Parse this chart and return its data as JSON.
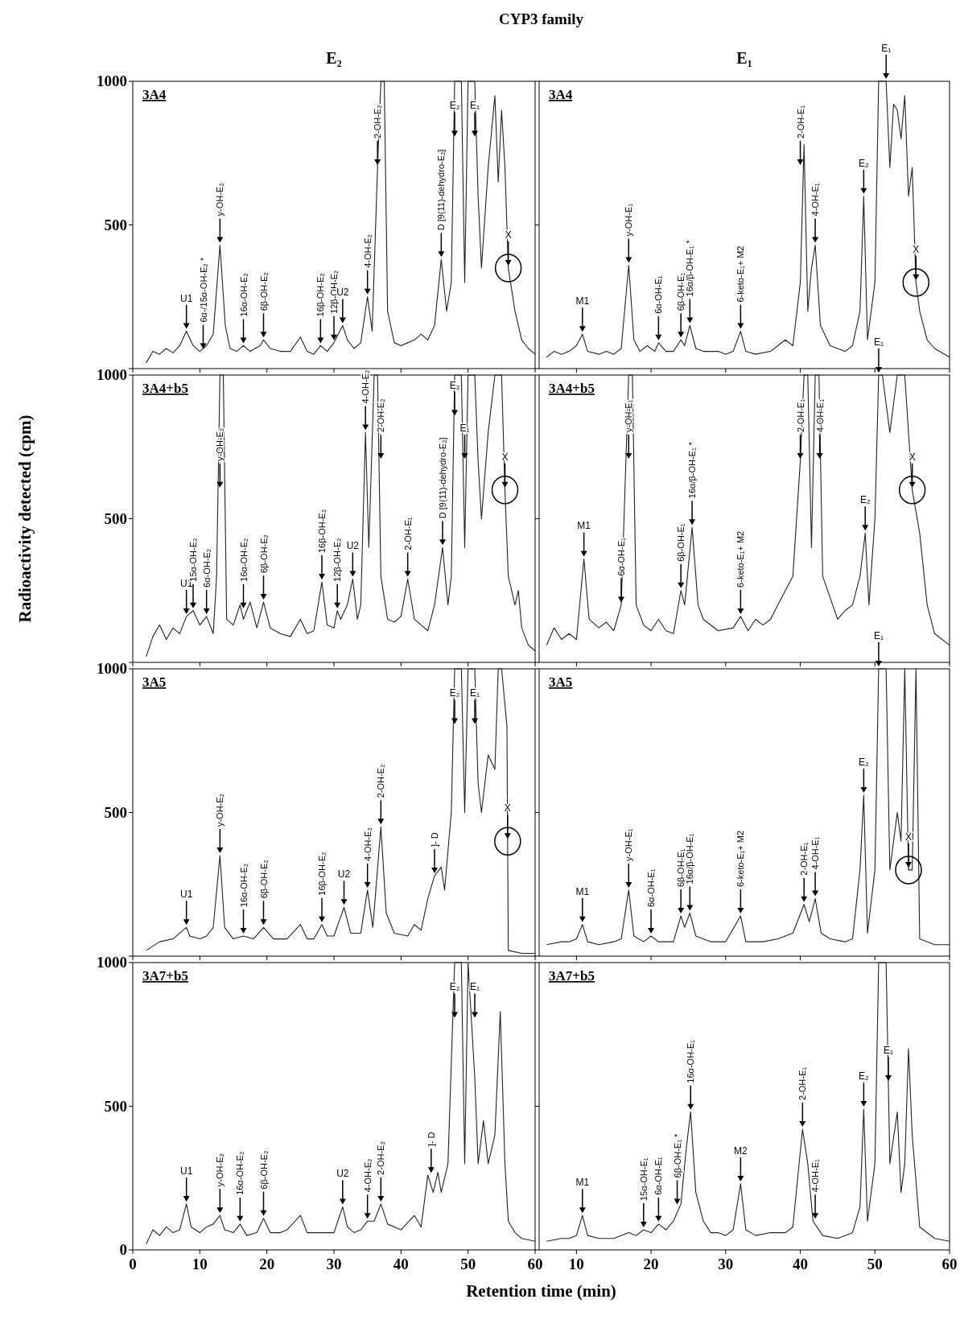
{
  "chart_data": [
    {
      "type": "line",
      "title": "3A4",
      "subtitle": "E₂",
      "xlim": [
        0,
        60
      ],
      "ylim": [
        0,
        1000
      ],
      "xticks": [
        0,
        10,
        20,
        30,
        40,
        50,
        60
      ],
      "yticks": [
        {
          "value": 0,
          "label": null
        },
        500,
        1000
      ],
      "tick_labels": "y",
      "x": [
        2,
        3,
        4,
        5,
        6,
        7,
        8,
        9,
        10,
        11,
        12,
        13,
        13.8,
        14.5,
        15.5,
        16.5,
        17.5,
        19,
        19.5,
        20.5,
        22,
        23.5,
        25,
        26,
        27,
        28,
        29,
        30,
        31.3,
        32,
        33,
        34,
        35,
        35.7,
        36.5,
        37,
        37.5,
        38,
        39,
        40,
        41,
        42,
        43,
        44,
        45,
        46,
        46.8,
        47.5,
        48,
        49,
        49.5,
        50,
        51,
        51.5,
        52,
        53,
        54,
        54.5,
        55,
        55.5,
        56,
        57,
        58,
        59,
        60
      ],
      "series": [
        {
          "color": "#222222",
          "values": [
            20,
            60,
            50,
            70,
            55,
            80,
            130,
            80,
            60,
            80,
            120,
            430,
            150,
            70,
            60,
            80,
            60,
            80,
            100,
            70,
            60,
            60,
            110,
            60,
            50,
            80,
            60,
            90,
            150,
            100,
            70,
            90,
            250,
            130,
            700,
            1000,
            1000,
            200,
            90,
            80,
            90,
            100,
            120,
            100,
            150,
            380,
            200,
            300,
            1000,
            1000,
            300,
            1000,
            1000,
            600,
            350,
            700,
            950,
            650,
            900,
            700,
            350,
            200,
            100,
            70,
            50
          ]
        }
      ],
      "annotations": [
        "CYP3 family",
        {
          "text": "U1",
          "x": 8,
          "y": 130
        },
        {
          "text": "6α-/15α-OH-E₂ *",
          "x": 10.5,
          "y": 60
        },
        {
          "text": "y-OH-E₂",
          "x": 13,
          "y": 430
        },
        {
          "text": "16α-OH-E₂",
          "x": 16.5,
          "y": 80
        },
        {
          "text": "6β-OH-E₂",
          "x": 19.5,
          "y": 100
        },
        {
          "text": "16β-OH-E₂",
          "x": 28,
          "y": 80
        },
        {
          "text": "12β-OH-E₂",
          "x": 30,
          "y": 90
        },
        {
          "text": "U2",
          "x": 31.3,
          "y": 150
        },
        {
          "text": "4-OH-E₂",
          "x": 35,
          "y": 250
        },
        {
          "text": "2-OH-E₂",
          "x": 36.5,
          "y": 700
        },
        {
          "text": "D [9(11)-dehydro-E₂]",
          "x": 46,
          "y": 380
        },
        {
          "text": "E₂",
          "x": 48,
          "y": 800
        },
        {
          "text": "E₁",
          "x": 51,
          "y": 800
        },
        {
          "text": "X",
          "x": 56,
          "y": 350
        }
      ]
    },
    {
      "type": "line",
      "title": "3A4",
      "subtitle": "E₁",
      "xlim": [
        5,
        60
      ],
      "ylim": [
        0,
        1000
      ],
      "xticks": [
        10,
        20,
        30,
        40,
        50,
        60
      ],
      "yticks": [
        {
          "value": 0,
          "label": null
        },
        {
          "value": 500,
          "label": null
        },
        {
          "value": 1000,
          "label": null
        }
      ],
      "tick_labels": false,
      "x": [
        6,
        7,
        8,
        9,
        10,
        10.8,
        11.5,
        13,
        14,
        15,
        16,
        17,
        17.7,
        18.5,
        19.5,
        20.5,
        21,
        22,
        23,
        24,
        24.5,
        25.2,
        26,
        27,
        29,
        30,
        31,
        32,
        32.7,
        34,
        36,
        37,
        38,
        39,
        40,
        40.5,
        41,
        41.5,
        42,
        42.7,
        44,
        46,
        47,
        48,
        48.5,
        49,
        50,
        50.5,
        51.5,
        52,
        52.5,
        53,
        53.5,
        54,
        54.5,
        55,
        55.5,
        56,
        57,
        58,
        60
      ],
      "series": [
        {
          "color": "#222222",
          "values": [
            40,
            60,
            50,
            60,
            80,
            120,
            60,
            50,
            60,
            50,
            70,
            360,
            100,
            60,
            80,
            60,
            90,
            60,
            60,
            100,
            80,
            150,
            70,
            60,
            60,
            50,
            60,
            130,
            60,
            50,
            60,
            80,
            100,
            80,
            300,
            780,
            200,
            350,
            430,
            150,
            80,
            60,
            80,
            200,
            600,
            100,
            300,
            1000,
            1000,
            700,
            920,
            900,
            800,
            950,
            600,
            700,
            300,
            200,
            100,
            70,
            40
          ]
        }
      ],
      "annotations": [
        {
          "text": "M1",
          "x": 10.8,
          "y": 120
        },
        {
          "text": "y-OH-E₁",
          "x": 17,
          "y": 360
        },
        {
          "text": "6α-OH-E₁",
          "x": 21,
          "y": 90
        },
        {
          "text": "6β-OH-E₁",
          "x": 24,
          "y": 100
        },
        {
          "text": "16α/β-OH-E₁ *",
          "x": 25.2,
          "y": 150
        },
        {
          "text": "6-keto-E₁+ M2",
          "x": 32,
          "y": 130
        },
        {
          "text": "2-OH-E₁",
          "x": 40,
          "y": 700
        },
        {
          "text": "4-OH-E₁",
          "x": 42,
          "y": 430
        },
        {
          "text": "E₂",
          "x": 48.5,
          "y": 600
        },
        {
          "text": "E₁",
          "x": 51.5,
          "y": 1000
        },
        {
          "text": "X",
          "x": 55.5,
          "y": 300
        }
      ]
    },
    {
      "type": "line",
      "title": "3A4+b5",
      "ylabel": "Radioactivity detected (cpm)",
      "xlim": [
        0,
        60
      ],
      "ylim": [
        0,
        1000
      ],
      "xticks": [
        0,
        10,
        20,
        30,
        40,
        50,
        60
      ],
      "yticks": [
        {
          "value": 0,
          "label": null
        },
        500,
        1000
      ],
      "tick_labels": "y",
      "x": [
        2,
        3,
        4,
        5,
        6,
        7,
        8,
        9,
        10,
        11,
        12,
        12.5,
        13,
        13.5,
        14,
        15,
        16,
        16.5,
        17.5,
        18.5,
        19.5,
        20.5,
        22,
        23.5,
        25,
        26,
        27,
        28.2,
        29,
        30,
        30.5,
        31,
        32,
        32.8,
        33.5,
        34,
        34.7,
        35.2,
        36,
        36.5,
        37,
        38,
        39,
        40,
        41,
        42,
        43,
        44,
        45,
        46.2,
        47,
        47.5,
        48,
        49,
        49.5,
        50,
        51,
        51.5,
        52,
        53,
        54,
        55,
        55.5,
        56,
        57,
        57.5,
        58,
        59,
        60
      ],
      "series": [
        {
          "color": "#222222",
          "values": [
            20,
            90,
            130,
            80,
            120,
            100,
            160,
            180,
            130,
            160,
            100,
            300,
            1000,
            1000,
            150,
            130,
            200,
            150,
            210,
            120,
            210,
            120,
            100,
            90,
            150,
            100,
            110,
            280,
            130,
            120,
            180,
            150,
            200,
            290,
            150,
            200,
            800,
            400,
            1000,
            1000,
            300,
            150,
            140,
            160,
            290,
            150,
            130,
            110,
            200,
            400,
            200,
            300,
            1000,
            1000,
            400,
            1000,
            1000,
            700,
            500,
            800,
            1000,
            1000,
            600,
            300,
            200,
            250,
            120,
            60,
            40
          ]
        }
      ],
      "annotations": [
        {
          "text": "U1",
          "x": 8,
          "y": 160
        },
        {
          "text": "15α-OH-E₂",
          "x": 9,
          "y": 180
        },
        {
          "text": "6α-OH-E₂",
          "x": 11,
          "y": 160
        },
        {
          "text": "y-OH-E₂",
          "x": 13,
          "y": 600
        },
        {
          "text": "16α-OH-E₂",
          "x": 16.5,
          "y": 180
        },
        {
          "text": "6β-OH-E₂",
          "x": 19.5,
          "y": 210
        },
        {
          "text": "16β-OH-E₂",
          "x": 28.2,
          "y": 280
        },
        {
          "text": "12β-OH-E₂",
          "x": 30.5,
          "y": 180
        },
        {
          "text": "U2",
          "x": 32.8,
          "y": 290
        },
        {
          "text": "4-OH-E₂",
          "x": 34.7,
          "y": 800
        },
        {
          "text": "2-OH-E₂",
          "x": 37,
          "y": 700
        },
        {
          "text": "2-OH-E₁",
          "x": 41,
          "y": 290
        },
        {
          "text": "D [9(11)-dehydro-E₂]",
          "x": 46.2,
          "y": 400
        },
        {
          "text": "E₁",
          "x": 49.5,
          "y": 700
        },
        {
          "text": "E₂",
          "x": 48,
          "y": 850
        },
        {
          "text": "X",
          "x": 55.5,
          "y": 600
        }
      ]
    },
    {
      "type": "line",
      "title": "3A4+b5",
      "xlim": [
        5,
        60
      ],
      "ylim": [
        0,
        1000
      ],
      "xticks": [
        10,
        20,
        30,
        40,
        50,
        60
      ],
      "yticks": [
        {
          "value": 0,
          "label": null
        },
        {
          "value": 500,
          "label": null
        },
        {
          "value": 1000,
          "label": null
        }
      ],
      "tick_labels": false,
      "x": [
        6,
        7,
        8,
        9,
        10,
        11,
        11.7,
        13,
        14,
        15,
        16,
        17,
        17.5,
        18,
        19,
        20,
        21,
        22,
        23,
        24,
        24.5,
        25.5,
        26.3,
        27,
        29,
        31,
        32,
        33,
        34,
        35,
        36,
        37,
        38,
        39,
        40,
        40.5,
        41,
        41.5,
        42,
        42.5,
        43,
        45,
        46,
        47,
        48,
        48.7,
        49.2,
        50,
        50.5,
        51,
        52,
        53,
        54,
        55,
        56,
        57,
        58,
        60
      ],
      "series": [
        {
          "color": "#222222",
          "values": [
            60,
            120,
            80,
            100,
            80,
            360,
            150,
            120,
            140,
            110,
            200,
            1000,
            1000,
            200,
            130,
            110,
            150,
            110,
            100,
            250,
            200,
            470,
            200,
            150,
            110,
            120,
            160,
            110,
            150,
            130,
            150,
            200,
            250,
            300,
            700,
            1000,
            1000,
            400,
            1000,
            1000,
            300,
            150,
            180,
            200,
            300,
            450,
            200,
            500,
            1000,
            1000,
            800,
            1000,
            1000,
            600,
            450,
            200,
            100,
            60
          ]
        }
      ],
      "annotations": [
        {
          "text": "M1",
          "x": 11,
          "y": 360
        },
        {
          "text": "6α-OH-E₁",
          "x": 16,
          "y": 200
        },
        {
          "text": "y-OH-E₁",
          "x": 17,
          "y": 700
        },
        {
          "text": "6β-OH-E₁",
          "x": 24,
          "y": 250
        },
        {
          "text": "16α/β-OH-E₁ *",
          "x": 25.5,
          "y": 470
        },
        {
          "text": "6-keto-E₁+ M2",
          "x": 32,
          "y": 160
        },
        {
          "text": "2-OH-E₁",
          "x": 40,
          "y": 700
        },
        {
          "text": "4-OH-E₁",
          "x": 42.6,
          "y": 700
        },
        {
          "text": "E₂",
          "x": 48.7,
          "y": 450
        },
        {
          "text": "E₁",
          "x": 50.5,
          "y": 1000
        },
        {
          "text": "X",
          "x": 55,
          "y": 600
        }
      ]
    },
    {
      "type": "line",
      "title": "3A5",
      "xlim": [
        0,
        60
      ],
      "ylim": [
        0,
        1000
      ],
      "xticks": [
        0,
        10,
        20,
        30,
        40,
        50,
        60
      ],
      "yticks": [
        {
          "value": 0,
          "label": null
        },
        500,
        1000
      ],
      "tick_labels": "y",
      "x": [
        2,
        4,
        6,
        7,
        8,
        8.5,
        10,
        11,
        12,
        13,
        13.7,
        15,
        16.5,
        18,
        19.5,
        21,
        23,
        25,
        26,
        27,
        28.2,
        29,
        30,
        31.5,
        32.5,
        34,
        35,
        35.8,
        37,
        37.8,
        39,
        41,
        42,
        43,
        44,
        45,
        46,
        46.5,
        47.5,
        48,
        49,
        49.5,
        50,
        51,
        51.5,
        52,
        53,
        54,
        54.5,
        55,
        55.8,
        55.9,
        56,
        58,
        60
      ],
      "series": [
        {
          "color": "#222222",
          "values": [
            20,
            50,
            60,
            80,
            100,
            70,
            60,
            70,
            100,
            350,
            100,
            60,
            70,
            60,
            100,
            60,
            60,
            110,
            60,
            60,
            110,
            70,
            70,
            170,
            80,
            80,
            230,
            100,
            450,
            150,
            80,
            70,
            110,
            90,
            200,
            280,
            310,
            230,
            500,
            1000,
            1000,
            500,
            1000,
            1000,
            600,
            500,
            700,
            650,
            1000,
            1000,
            800,
            400,
            20,
            10,
            10
          ]
        }
      ],
      "annotations": [
        {
          "text": "U1",
          "x": 8,
          "y": 100
        },
        {
          "text": "y-OH-E₂",
          "x": 13,
          "y": 350
        },
        {
          "text": "16α-OH-E₂",
          "x": 16.5,
          "y": 70
        },
        {
          "text": "6β-OH-E₂",
          "x": 19.5,
          "y": 100
        },
        {
          "text": "16β-OH-E₂",
          "x": 28.2,
          "y": 110
        },
        {
          "text": "U2",
          "x": 31.5,
          "y": 170
        },
        {
          "text": "4-OH-E₂",
          "x": 35,
          "y": 230
        },
        {
          "text": "2-OH-E₂",
          "x": 37,
          "y": 450
        },
        {
          "text": "]- D",
          "x": 45,
          "y": 280
        },
        {
          "text": "E₂",
          "x": 48,
          "y": 800
        },
        {
          "text": "E₁",
          "x": 51,
          "y": 800
        },
        {
          "text": "X",
          "x": 55.9,
          "y": 400
        }
      ]
    },
    {
      "type": "line",
      "title": "3A5",
      "xlim": [
        5,
        60
      ],
      "ylim": [
        0,
        1000
      ],
      "xticks": [
        10,
        20,
        30,
        40,
        50,
        60
      ],
      "yticks": [
        {
          "value": 0,
          "label": null
        },
        {
          "value": 500,
          "label": null
        },
        {
          "value": 1000,
          "label": null
        }
      ],
      "tick_labels": false,
      "x": [
        6,
        8,
        9,
        10,
        10.8,
        11.5,
        13,
        15,
        16,
        17,
        17.7,
        19,
        20,
        21,
        23,
        24,
        24.5,
        25.2,
        26,
        28,
        30,
        32,
        32.7,
        35,
        37,
        39,
        40.5,
        41.2,
        42,
        42.8,
        44,
        46,
        47,
        48,
        48.5,
        49,
        50,
        50.5,
        51.5,
        52,
        53,
        53.5,
        54,
        54.5,
        55,
        55.5,
        56,
        58,
        60
      ],
      "series": [
        {
          "color": "#222222",
          "values": [
            40,
            50,
            50,
            60,
            110,
            50,
            40,
            50,
            60,
            230,
            70,
            50,
            70,
            50,
            50,
            140,
            100,
            150,
            70,
            50,
            50,
            140,
            50,
            50,
            60,
            80,
            180,
            120,
            200,
            80,
            60,
            50,
            60,
            300,
            560,
            80,
            300,
            1000,
            1000,
            300,
            500,
            400,
            1000,
            300,
            300,
            1000,
            60,
            40,
            40
          ]
        }
      ],
      "annotations": [
        {
          "text": "M1",
          "x": 10.8,
          "y": 110
        },
        {
          "text": "y-OH-E₁",
          "x": 17,
          "y": 230
        },
        {
          "text": "6α-OH-E₁",
          "x": 20,
          "y": 70
        },
        {
          "text": "6β-OH-E₁",
          "x": 24,
          "y": 140
        },
        {
          "text": "16α/β-OH-E₁",
          "x": 25.2,
          "y": 150
        },
        {
          "text": "6-keto-E₁+ M2",
          "x": 32,
          "y": 140
        },
        {
          "text": "2-OH-E₁",
          "x": 40.5,
          "y": 180
        },
        {
          "text": "4-OH-E₁",
          "x": 42,
          "y": 200
        },
        {
          "text": "E₂",
          "x": 48.5,
          "y": 560
        },
        {
          "text": "E₁",
          "x": 50.5,
          "y": 1000
        },
        {
          "text": "X",
          "x": 54.5,
          "y": 300
        }
      ]
    },
    {
      "type": "line",
      "title": "3A7+b5",
      "xlabel": "Retention time (min)",
      "xlim": [
        0,
        60
      ],
      "ylim": [
        0,
        1000
      ],
      "xticks": [
        0,
        10,
        20,
        30,
        40,
        50,
        60
      ],
      "yticks": [
        0,
        500,
        1000
      ],
      "x": [
        2,
        3,
        4,
        5,
        6,
        7,
        8,
        8.7,
        10,
        11,
        12,
        13,
        13.7,
        15,
        16,
        17,
        18.5,
        19.5,
        20.5,
        22,
        23,
        25,
        26,
        28,
        30,
        31.3,
        32,
        33,
        34,
        35,
        36,
        37,
        38,
        40,
        42,
        43,
        44,
        44.8,
        45.5,
        46,
        47,
        48,
        49,
        49.5,
        50,
        51,
        51.5,
        52.3,
        53,
        54,
        54.8,
        55.5,
        56,
        57,
        58,
        60
      ],
      "series": [
        {
          "color": "#222222",
          "values": [
            20,
            70,
            50,
            80,
            60,
            70,
            160,
            80,
            60,
            80,
            90,
            120,
            70,
            60,
            90,
            50,
            60,
            110,
            60,
            60,
            70,
            120,
            60,
            60,
            60,
            150,
            80,
            60,
            70,
            100,
            100,
            160,
            90,
            70,
            120,
            80,
            260,
            200,
            270,
            200,
            300,
            1000,
            1000,
            300,
            1000,
            600,
            300,
            450,
            300,
            400,
            830,
            300,
            100,
            60,
            40,
            30
          ]
        }
      ],
      "annotations": [
        {
          "text": "U1",
          "x": 8,
          "y": 160
        },
        {
          "text": "y-OH-E₂",
          "x": 13,
          "y": 120
        },
        {
          "text": "16α-OH-E₂",
          "x": 16,
          "y": 90
        },
        {
          "text": "6β-OH-E₂",
          "x": 19.5,
          "y": 110
        },
        {
          "text": "U2",
          "x": 31.3,
          "y": 150
        },
        {
          "text": "4-OH-E₂",
          "x": 35,
          "y": 100
        },
        {
          "text": "2-OH-E₂",
          "x": 37,
          "y": 160
        },
        {
          "text": "]- D",
          "x": 44.5,
          "y": 260
        },
        {
          "text": "E₂",
          "x": 48,
          "y": 800
        },
        {
          "text": "E₁",
          "x": 51,
          "y": 800
        }
      ]
    },
    {
      "type": "line",
      "title": "3A7+b5",
      "xlim": [
        5,
        60
      ],
      "ylim": [
        0,
        1000
      ],
      "xticks": [
        10,
        20,
        30,
        40,
        50,
        60
      ],
      "yticks": [
        {
          "value": 0,
          "label": null
        },
        {
          "value": 500,
          "label": null
        },
        {
          "value": 1000,
          "label": null
        }
      ],
      "tick_labels": "x",
      "x": [
        6,
        8,
        9,
        10,
        10.8,
        11.5,
        13,
        15,
        17,
        18,
        19,
        20,
        21,
        22,
        23,
        24,
        24.7,
        25.3,
        26,
        27,
        28,
        29,
        30,
        31,
        32,
        32.7,
        34,
        36,
        38,
        39,
        40.3,
        41,
        41.7,
        43,
        45,
        46,
        47,
        48,
        48.5,
        49,
        50,
        50.5,
        51.5,
        52,
        53,
        53.5,
        54,
        54.5,
        55,
        56,
        58,
        60
      ],
      "series": [
        {
          "color": "#222222",
          "values": [
            30,
            40,
            40,
            50,
            120,
            50,
            40,
            40,
            60,
            50,
            70,
            60,
            90,
            70,
            100,
            160,
            350,
            480,
            200,
            100,
            60,
            60,
            50,
            70,
            230,
            70,
            50,
            60,
            60,
            80,
            420,
            300,
            100,
            50,
            40,
            50,
            60,
            150,
            490,
            100,
            300,
            1000,
            1000,
            300,
            480,
            200,
            300,
            700,
            400,
            80,
            40,
            30
          ]
        }
      ],
      "annotations": [
        {
          "text": "M1",
          "x": 10.8,
          "y": 120
        },
        {
          "text": "15α-OH-E₁",
          "x": 19,
          "y": 70
        },
        {
          "text": "6α-OH-E₁",
          "x": 21,
          "y": 90
        },
        {
          "text": "6β-OH-E₁ *",
          "x": 23.5,
          "y": 150
        },
        {
          "text": "16α-OH-E₁",
          "x": 25.3,
          "y": 480
        },
        {
          "text": "M2",
          "x": 32,
          "y": 230
        },
        {
          "text": "2-OH-E₁",
          "x": 40.3,
          "y": 420
        },
        {
          "text": "4-OH-E₁",
          "x": 42,
          "y": 100
        },
        {
          "text": "E₂",
          "x": 48.5,
          "y": 490
        },
        {
          "text": "E₁",
          "x": 51.8,
          "y": 580
        }
      ]
    }
  ]
}
